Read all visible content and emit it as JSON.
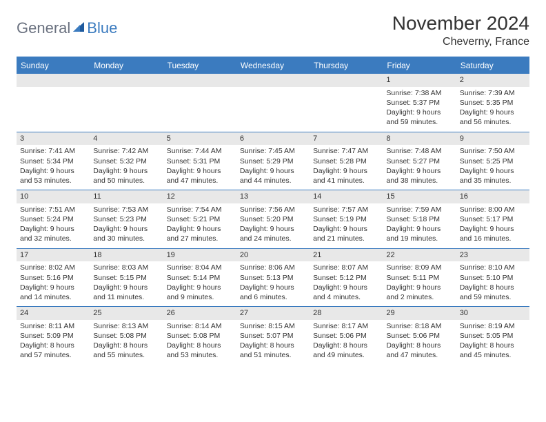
{
  "brand": {
    "text1": "General",
    "text2": "Blue",
    "text_color_general": "#6b7280",
    "text_color_blue": "#3b7bbf",
    "sail_color": "#1e5a9e"
  },
  "title": "November 2024",
  "location": "Cheverny, France",
  "colors": {
    "header_bg": "#3b7bbf",
    "header_text": "#ffffff",
    "daynum_bg": "#e8e8e8",
    "border": "#3b7bbf",
    "body_text": "#333333"
  },
  "typography": {
    "title_fontsize": 28,
    "location_fontsize": 16,
    "dayheader_fontsize": 12,
    "cell_fontsize": 10.5
  },
  "day_headers": [
    "Sunday",
    "Monday",
    "Tuesday",
    "Wednesday",
    "Thursday",
    "Friday",
    "Saturday"
  ],
  "weeks": [
    [
      {
        "num": "",
        "sunrise": "",
        "sunset": "",
        "daylight": ""
      },
      {
        "num": "",
        "sunrise": "",
        "sunset": "",
        "daylight": ""
      },
      {
        "num": "",
        "sunrise": "",
        "sunset": "",
        "daylight": ""
      },
      {
        "num": "",
        "sunrise": "",
        "sunset": "",
        "daylight": ""
      },
      {
        "num": "",
        "sunrise": "",
        "sunset": "",
        "daylight": ""
      },
      {
        "num": "1",
        "sunrise": "Sunrise: 7:38 AM",
        "sunset": "Sunset: 5:37 PM",
        "daylight": "Daylight: 9 hours and 59 minutes."
      },
      {
        "num": "2",
        "sunrise": "Sunrise: 7:39 AM",
        "sunset": "Sunset: 5:35 PM",
        "daylight": "Daylight: 9 hours and 56 minutes."
      }
    ],
    [
      {
        "num": "3",
        "sunrise": "Sunrise: 7:41 AM",
        "sunset": "Sunset: 5:34 PM",
        "daylight": "Daylight: 9 hours and 53 minutes."
      },
      {
        "num": "4",
        "sunrise": "Sunrise: 7:42 AM",
        "sunset": "Sunset: 5:32 PM",
        "daylight": "Daylight: 9 hours and 50 minutes."
      },
      {
        "num": "5",
        "sunrise": "Sunrise: 7:44 AM",
        "sunset": "Sunset: 5:31 PM",
        "daylight": "Daylight: 9 hours and 47 minutes."
      },
      {
        "num": "6",
        "sunrise": "Sunrise: 7:45 AM",
        "sunset": "Sunset: 5:29 PM",
        "daylight": "Daylight: 9 hours and 44 minutes."
      },
      {
        "num": "7",
        "sunrise": "Sunrise: 7:47 AM",
        "sunset": "Sunset: 5:28 PM",
        "daylight": "Daylight: 9 hours and 41 minutes."
      },
      {
        "num": "8",
        "sunrise": "Sunrise: 7:48 AM",
        "sunset": "Sunset: 5:27 PM",
        "daylight": "Daylight: 9 hours and 38 minutes."
      },
      {
        "num": "9",
        "sunrise": "Sunrise: 7:50 AM",
        "sunset": "Sunset: 5:25 PM",
        "daylight": "Daylight: 9 hours and 35 minutes."
      }
    ],
    [
      {
        "num": "10",
        "sunrise": "Sunrise: 7:51 AM",
        "sunset": "Sunset: 5:24 PM",
        "daylight": "Daylight: 9 hours and 32 minutes."
      },
      {
        "num": "11",
        "sunrise": "Sunrise: 7:53 AM",
        "sunset": "Sunset: 5:23 PM",
        "daylight": "Daylight: 9 hours and 30 minutes."
      },
      {
        "num": "12",
        "sunrise": "Sunrise: 7:54 AM",
        "sunset": "Sunset: 5:21 PM",
        "daylight": "Daylight: 9 hours and 27 minutes."
      },
      {
        "num": "13",
        "sunrise": "Sunrise: 7:56 AM",
        "sunset": "Sunset: 5:20 PM",
        "daylight": "Daylight: 9 hours and 24 minutes."
      },
      {
        "num": "14",
        "sunrise": "Sunrise: 7:57 AM",
        "sunset": "Sunset: 5:19 PM",
        "daylight": "Daylight: 9 hours and 21 minutes."
      },
      {
        "num": "15",
        "sunrise": "Sunrise: 7:59 AM",
        "sunset": "Sunset: 5:18 PM",
        "daylight": "Daylight: 9 hours and 19 minutes."
      },
      {
        "num": "16",
        "sunrise": "Sunrise: 8:00 AM",
        "sunset": "Sunset: 5:17 PM",
        "daylight": "Daylight: 9 hours and 16 minutes."
      }
    ],
    [
      {
        "num": "17",
        "sunrise": "Sunrise: 8:02 AM",
        "sunset": "Sunset: 5:16 PM",
        "daylight": "Daylight: 9 hours and 14 minutes."
      },
      {
        "num": "18",
        "sunrise": "Sunrise: 8:03 AM",
        "sunset": "Sunset: 5:15 PM",
        "daylight": "Daylight: 9 hours and 11 minutes."
      },
      {
        "num": "19",
        "sunrise": "Sunrise: 8:04 AM",
        "sunset": "Sunset: 5:14 PM",
        "daylight": "Daylight: 9 hours and 9 minutes."
      },
      {
        "num": "20",
        "sunrise": "Sunrise: 8:06 AM",
        "sunset": "Sunset: 5:13 PM",
        "daylight": "Daylight: 9 hours and 6 minutes."
      },
      {
        "num": "21",
        "sunrise": "Sunrise: 8:07 AM",
        "sunset": "Sunset: 5:12 PM",
        "daylight": "Daylight: 9 hours and 4 minutes."
      },
      {
        "num": "22",
        "sunrise": "Sunrise: 8:09 AM",
        "sunset": "Sunset: 5:11 PM",
        "daylight": "Daylight: 9 hours and 2 minutes."
      },
      {
        "num": "23",
        "sunrise": "Sunrise: 8:10 AM",
        "sunset": "Sunset: 5:10 PM",
        "daylight": "Daylight: 8 hours and 59 minutes."
      }
    ],
    [
      {
        "num": "24",
        "sunrise": "Sunrise: 8:11 AM",
        "sunset": "Sunset: 5:09 PM",
        "daylight": "Daylight: 8 hours and 57 minutes."
      },
      {
        "num": "25",
        "sunrise": "Sunrise: 8:13 AM",
        "sunset": "Sunset: 5:08 PM",
        "daylight": "Daylight: 8 hours and 55 minutes."
      },
      {
        "num": "26",
        "sunrise": "Sunrise: 8:14 AM",
        "sunset": "Sunset: 5:08 PM",
        "daylight": "Daylight: 8 hours and 53 minutes."
      },
      {
        "num": "27",
        "sunrise": "Sunrise: 8:15 AM",
        "sunset": "Sunset: 5:07 PM",
        "daylight": "Daylight: 8 hours and 51 minutes."
      },
      {
        "num": "28",
        "sunrise": "Sunrise: 8:17 AM",
        "sunset": "Sunset: 5:06 PM",
        "daylight": "Daylight: 8 hours and 49 minutes."
      },
      {
        "num": "29",
        "sunrise": "Sunrise: 8:18 AM",
        "sunset": "Sunset: 5:06 PM",
        "daylight": "Daylight: 8 hours and 47 minutes."
      },
      {
        "num": "30",
        "sunrise": "Sunrise: 8:19 AM",
        "sunset": "Sunset: 5:05 PM",
        "daylight": "Daylight: 8 hours and 45 minutes."
      }
    ]
  ]
}
